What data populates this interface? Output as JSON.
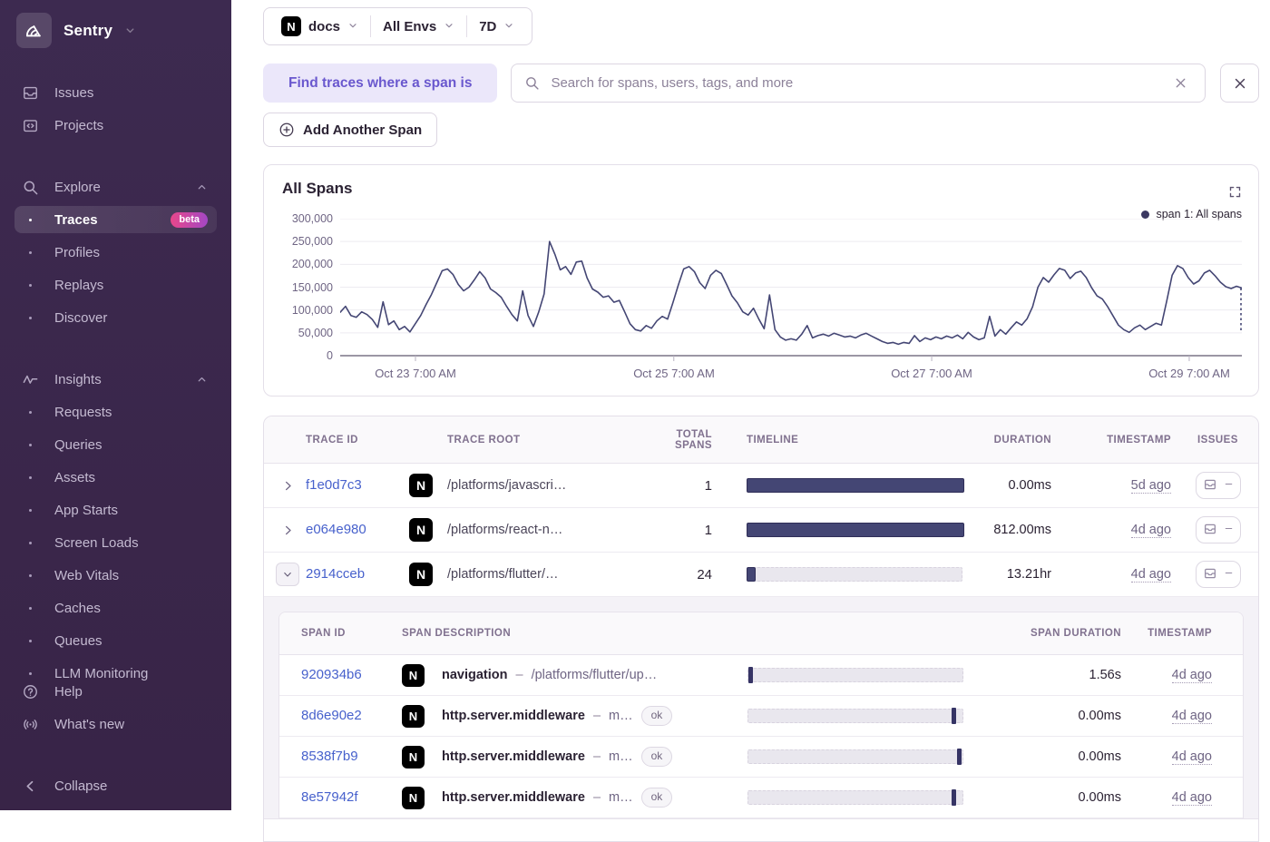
{
  "sidebar": {
    "org_name": "Sentry",
    "primary": [
      {
        "id": "issues",
        "label": "Issues"
      },
      {
        "id": "projects",
        "label": "Projects"
      }
    ],
    "groups": [
      {
        "id": "explore",
        "label": "Explore",
        "children": [
          {
            "label": "Traces",
            "badge": "beta",
            "active": true
          },
          {
            "label": "Profiles"
          },
          {
            "label": "Replays"
          },
          {
            "label": "Discover"
          }
        ]
      },
      {
        "id": "insights",
        "label": "Insights",
        "children": [
          {
            "label": "Requests"
          },
          {
            "label": "Queries"
          },
          {
            "label": "Assets"
          },
          {
            "label": "App Starts"
          },
          {
            "label": "Screen Loads"
          },
          {
            "label": "Web Vitals"
          },
          {
            "label": "Caches"
          },
          {
            "label": "Queues"
          },
          {
            "label": "LLM Monitoring"
          }
        ]
      }
    ],
    "footer": [
      {
        "id": "help",
        "label": "Help"
      },
      {
        "id": "whats-new",
        "label": "What's new"
      },
      {
        "id": "collapse",
        "label": "Collapse"
      }
    ]
  },
  "topbar": {
    "project": "docs",
    "environment": "All Envs",
    "date_range": "7D"
  },
  "filter": {
    "chip_label": "Find traces where a span is",
    "search_placeholder": "Search for spans, users, tags, and more",
    "search_value": "",
    "add_span_label": "Add Another Span"
  },
  "chart": {
    "title": "All Spans",
    "legend_label": "span 1: All spans",
    "line_color": "#444674",
    "chart_data": {
      "type": "line",
      "title": "All Spans",
      "ylim": [
        0,
        300000
      ],
      "y_ticks": [
        "300,000",
        "250,000",
        "200,000",
        "150,000",
        "100,000",
        "50,000",
        "0"
      ],
      "x_ticks": [
        {
          "label": "Oct 23 7:00 AM",
          "pos": 0.0835
        },
        {
          "label": "Oct 25 7:00 AM",
          "pos": 0.37
        },
        {
          "label": "Oct 27 7:00 AM",
          "pos": 0.656
        },
        {
          "label": "Oct 29 7:00 AM",
          "pos": 0.9416
        }
      ],
      "grid": "horizontal",
      "legend_position": "top-right",
      "dashed_tail": true,
      "series": [
        {
          "name": "span 1: All spans",
          "values": [
            95000,
            108000,
            88000,
            84000,
            96000,
            90000,
            79000,
            62000,
            118000,
            68000,
            76000,
            57000,
            64000,
            52000,
            70000,
            88000,
            112000,
            134000,
            160000,
            186000,
            190000,
            178000,
            156000,
            142000,
            150000,
            166000,
            184000,
            170000,
            146000,
            138000,
            128000,
            108000,
            90000,
            76000,
            142000,
            88000,
            64000,
            96000,
            135000,
            250000,
            222000,
            188000,
            195000,
            178000,
            205000,
            207000,
            170000,
            146000,
            139000,
            128000,
            131000,
            117000,
            121000,
            96000,
            70000,
            57000,
            54000,
            66000,
            60000,
            76000,
            86000,
            80000,
            116000,
            155000,
            190000,
            195000,
            184000,
            160000,
            147000,
            176000,
            187000,
            180000,
            156000,
            131000,
            116000,
            96000,
            89000,
            104000,
            80000,
            59000,
            133000,
            57000,
            41000,
            34000,
            37000,
            34000,
            47000,
            66000,
            39000,
            44000,
            47000,
            43000,
            49000,
            45000,
            41000,
            43000,
            39000,
            45000,
            49000,
            43000,
            37000,
            31000,
            27000,
            29000,
            25000,
            29000,
            27000,
            44000,
            31000,
            39000,
            35000,
            41000,
            37000,
            43000,
            39000,
            45000,
            37000,
            51000,
            41000,
            35000,
            39000,
            86000,
            43000,
            57000,
            47000,
            61000,
            74000,
            67000,
            81000,
            107000,
            150000,
            171000,
            161000,
            177000,
            191000,
            187000,
            169000,
            181000,
            185000,
            171000,
            149000,
            131000,
            124000,
            107000,
            87000,
            67000,
            57000,
            51000,
            61000,
            67000,
            57000,
            64000,
            71000,
            67000,
            120000,
            176000,
            197000,
            191000,
            171000,
            157000,
            164000,
            181000,
            187000,
            175000,
            161000,
            151000,
            147000,
            152000,
            148000
          ]
        }
      ]
    }
  },
  "table": {
    "columns": [
      "TRACE ID",
      "TRACE ROOT",
      "TOTAL SPANS",
      "TIMELINE",
      "DURATION",
      "TIMESTAMP",
      "ISSUES"
    ],
    "rows": [
      {
        "trace_id": "f1e0d7c3",
        "project_icon": "nextjs",
        "trace_root": "/platforms/javascri…",
        "total_spans": "1",
        "timeline_fill": 1,
        "duration": "0.00ms",
        "timestamp": "5d ago",
        "expanded": false
      },
      {
        "trace_id": "e064e980",
        "project_icon": "nextjs",
        "trace_root": "/platforms/react-n…",
        "total_spans": "1",
        "timeline_fill": 1,
        "duration": "812.00ms",
        "timestamp": "4d ago",
        "expanded": false
      },
      {
        "trace_id": "2914cceb",
        "project_icon": "nextjs",
        "trace_root": "/platforms/flutter/…",
        "total_spans": "24",
        "timeline_fill": 0.035,
        "duration": "13.21hr",
        "timestamp": "4d ago",
        "expanded": true
      }
    ],
    "span_table": {
      "columns": [
        "SPAN ID",
        "SPAN DESCRIPTION",
        "SPAN DURATION",
        "TIMESTAMP"
      ],
      "rows": [
        {
          "span_id": "920934b6",
          "project_icon": "nextjs",
          "op": "navigation",
          "description": "/platforms/flutter/up…",
          "status": "",
          "tick_pos": 0,
          "duration": "1.56s",
          "timestamp": "4d ago"
        },
        {
          "span_id": "8d6e90e2",
          "project_icon": "nextjs",
          "op": "http.server.middleware",
          "description": "m…",
          "status": "ok",
          "tick_pos": 0.96,
          "duration": "0.00ms",
          "timestamp": "4d ago"
        },
        {
          "span_id": "8538f7b9",
          "project_icon": "nextjs",
          "op": "http.server.middleware",
          "description": "m…",
          "status": "ok",
          "tick_pos": 0.985,
          "duration": "0.00ms",
          "timestamp": "4d ago"
        },
        {
          "span_id": "8e57942f",
          "project_icon": "nextjs",
          "op": "http.server.middleware",
          "description": "m…",
          "status": "ok",
          "tick_pos": 0.96,
          "duration": "0.00ms",
          "timestamp": "4d ago"
        }
      ]
    }
  }
}
